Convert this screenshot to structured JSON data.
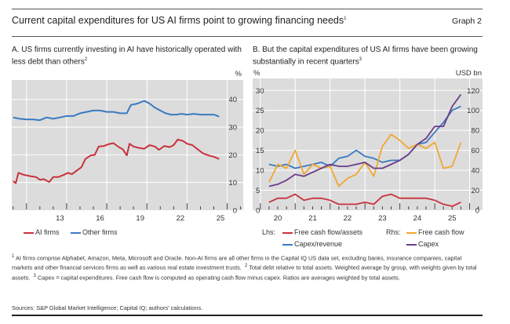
{
  "header": {
    "title": "Current capital expenditures for US AI firms point to growing financing needs",
    "title_sup": "1",
    "graph_label": "Graph 2"
  },
  "chart_data": [
    {
      "type": "line",
      "title": "A. US firms currently investing in AI have historically operated with less debt than others",
      "title_sup": "2",
      "ylabel": "%",
      "ylim": [
        0,
        47
      ],
      "xlim": [
        2009.9,
        2027.2
      ],
      "yticks": [
        0,
        10,
        20,
        30,
        40
      ],
      "xtick_labels": [
        "13",
        "16",
        "19",
        "22",
        "25"
      ],
      "xtick_years": [
        2013,
        2016,
        2019,
        2022,
        2025
      ],
      "grid": true,
      "legend_placement": "bottom",
      "series": [
        {
          "name": "AI firms",
          "color": "#c8323c",
          "x": [
            2010.0,
            2010.2,
            2010.4,
            2010.8,
            2011.3,
            2011.7,
            2012.0,
            2012.3,
            2012.7,
            2013.0,
            2013.4,
            2013.8,
            2014.1,
            2014.4,
            2014.8,
            2015.1,
            2015.4,
            2015.8,
            2016.1,
            2016.4,
            2016.8,
            2017.1,
            2017.5,
            2017.9,
            2018.2,
            2018.5,
            2018.7,
            2019.0,
            2019.4,
            2019.8,
            2020.2,
            2020.6,
            2020.9,
            2021.3,
            2021.7,
            2022.0,
            2022.3,
            2022.7,
            2023.0,
            2023.4,
            2023.8,
            2024.2,
            2024.6,
            2025.0,
            2025.4
          ],
          "values": [
            10.5,
            9.8,
            13.5,
            12.8,
            12.3,
            12.0,
            11.0,
            11.2,
            10.2,
            12.0,
            12.0,
            12.8,
            13.5,
            13.0,
            14.5,
            15.5,
            18.5,
            19.8,
            20.0,
            23.0,
            23.2,
            23.8,
            24.2,
            22.8,
            22.0,
            19.8,
            24.0,
            23.0,
            22.5,
            22.2,
            23.5,
            23.0,
            21.8,
            23.2,
            22.8,
            23.5,
            25.5,
            25.0,
            24.0,
            23.5,
            22.0,
            20.5,
            19.8,
            19.3,
            18.5
          ]
        },
        {
          "name": "Other firms",
          "color": "#3a7ac0",
          "x": [
            2010.0,
            2010.5,
            2011.0,
            2011.5,
            2012.0,
            2012.5,
            2013.0,
            2013.5,
            2014.0,
            2014.5,
            2015.0,
            2015.5,
            2016.0,
            2016.5,
            2017.0,
            2017.5,
            2018.0,
            2018.5,
            2018.8,
            2019.3,
            2019.8,
            2020.2,
            2020.6,
            2021.0,
            2021.4,
            2021.8,
            2022.2,
            2022.6,
            2023.0,
            2023.5,
            2024.0,
            2024.5,
            2025.0,
            2025.4
          ],
          "values": [
            33.5,
            33.0,
            32.8,
            32.8,
            32.5,
            33.5,
            33.0,
            33.5,
            34.0,
            34.0,
            35.0,
            35.5,
            36.0,
            36.0,
            35.5,
            35.5,
            35.0,
            35.0,
            38.0,
            38.5,
            39.5,
            38.5,
            37.0,
            36.0,
            35.0,
            34.5,
            34.5,
            34.8,
            34.5,
            34.8,
            34.5,
            34.5,
            34.5,
            33.8
          ]
        }
      ]
    },
    {
      "type": "line",
      "title": "B. But the capital expenditures of US AI firms have been growing substantially in recent quarters",
      "title_sup": "3",
      "ylabel_left": "%",
      "ylabel_right": "USD bn",
      "ylim_left": [
        0,
        33
      ],
      "ylim_right": [
        0,
        132
      ],
      "xlim": [
        2019.78,
        2026.37
      ],
      "yticks_left": [
        0,
        5,
        10,
        15,
        20,
        25,
        30
      ],
      "yticks_right": [
        0,
        20,
        40,
        60,
        80,
        100,
        120
      ],
      "xtick_labels": [
        "20",
        "21",
        "22",
        "23",
        "24",
        "25"
      ],
      "xtick_years": [
        2020,
        2021,
        2022,
        2023,
        2024,
        2025
      ],
      "grid": true,
      "legend_placement": "bottom",
      "legend_lhs_label": "Lhs:",
      "legend_rhs_label": "Rhs:",
      "x": [
        "2020-Q1",
        "2020-Q2",
        "2020-Q3",
        "2020-Q4",
        "2021-Q1",
        "2021-Q2",
        "2021-Q3",
        "2021-Q4",
        "2022-Q1",
        "2022-Q2",
        "2022-Q3",
        "2022-Q4",
        "2023-Q1",
        "2023-Q2",
        "2023-Q3",
        "2023-Q4",
        "2024-Q1",
        "2024-Q2",
        "2024-Q3",
        "2024-Q4",
        "2025-Q1",
        "2025-Q2",
        "2025-Q3"
      ],
      "series": [
        {
          "name": "Free cash flow/assets",
          "axis": "left",
          "color": "#c8323c",
          "values": [
            2,
            3,
            3,
            4,
            2.5,
            3,
            3,
            2.5,
            1.5,
            1.5,
            1.5,
            2,
            1.5,
            3.5,
            4,
            3,
            3,
            3,
            3,
            2.5,
            1.5,
            1,
            2
          ]
        },
        {
          "name": "Capex/revenue",
          "axis": "left",
          "color": "#3a7ac0",
          "values": [
            11.5,
            11,
            11.5,
            10.5,
            11,
            11.5,
            12,
            11,
            13,
            13.5,
            15,
            13.5,
            13,
            12,
            12.5,
            12.5,
            14,
            16.5,
            17,
            19.5,
            22,
            25,
            26
          ]
        },
        {
          "name": "Free cash flow",
          "axis": "right",
          "color": "#f0a830",
          "values": [
            28,
            46,
            42,
            60,
            36,
            46,
            42,
            44,
            24,
            32,
            36,
            48,
            34,
            64,
            76,
            70,
            62,
            66,
            62,
            68,
            42,
            44,
            68
          ]
        },
        {
          "name": "Capex",
          "axis": "right",
          "color": "#6a3d8a",
          "values": [
            24,
            26,
            30,
            36,
            34,
            38,
            42,
            46,
            44,
            44,
            46,
            48,
            42,
            42,
            46,
            50,
            56,
            66,
            72,
            84,
            84,
            104,
            116
          ]
        }
      ]
    }
  ],
  "footnotes": {
    "n1": "AI firms comprise Alphabet, Amazon, Meta, Microsoft and Oracle. Non-AI firms are all other firms in the Capital IQ US data set, excluding banks, insurance companies, capital markets and other financial services firms as well as various real estate investment trusts.",
    "n2": "Total debt relative to total assets. Weighted average by group, with weights given by total assets.",
    "n3": "Capex = capital expenditures. Free cash flow is computed as operating cash flow minus capex. Ratios are averages weighted by total assets.",
    "sup1": "1",
    "sup2": "2",
    "sup3": "3",
    "sources": "Sources: S&P Global Market Intelligence; Capital IQ; authors' calculations."
  }
}
